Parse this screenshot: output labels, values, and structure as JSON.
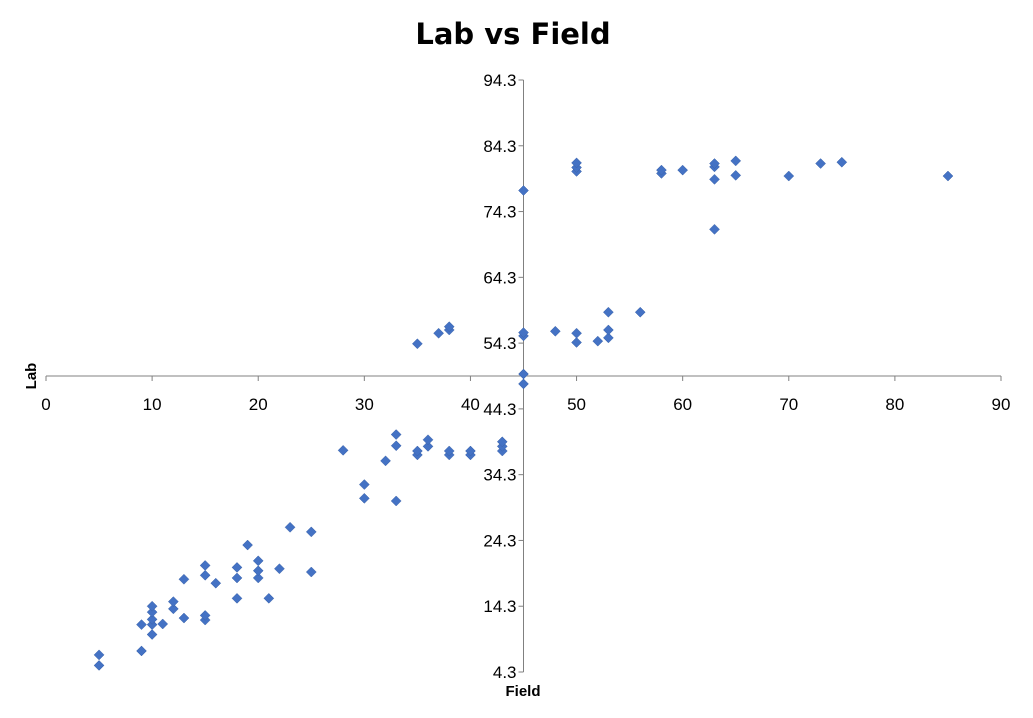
{
  "chart_data": {
    "type": "scatter",
    "title": "Lab vs Field",
    "xlabel": "Field",
    "ylabel": "Lab",
    "xlim": [
      0,
      90
    ],
    "ylim": [
      4.3,
      94.3
    ],
    "x_axis_crosses_y_at": 49.3,
    "y_axis_crosses_x_at": 45,
    "x_ticks": [
      "0",
      "10",
      "20",
      "30",
      "40",
      "50",
      "60",
      "70",
      "80",
      "90"
    ],
    "y_ticks": [
      "4.3",
      "14.3",
      "24.3",
      "34.3",
      "44.3",
      "54.3",
      "64.3",
      "74.3",
      "84.3",
      "94.3"
    ],
    "marker": "diamond",
    "grid": false,
    "legend": "none",
    "color": "#4472C4",
    "series": [
      {
        "points": [
          [
            5,
            5.3
          ],
          [
            5,
            6.9
          ],
          [
            9,
            7.5
          ],
          [
            9,
            11.5
          ],
          [
            10,
            10.0
          ],
          [
            10,
            11.5
          ],
          [
            10,
            12.3
          ],
          [
            10,
            13.4
          ],
          [
            10,
            14.3
          ],
          [
            11,
            11.6
          ],
          [
            12,
            13.9
          ],
          [
            12,
            15.0
          ],
          [
            13,
            12.5
          ],
          [
            13,
            18.4
          ],
          [
            15,
            12.2
          ],
          [
            15,
            12.9
          ],
          [
            15,
            19.0
          ],
          [
            15,
            20.5
          ],
          [
            16,
            17.8
          ],
          [
            18,
            15.5
          ],
          [
            18,
            18.6
          ],
          [
            18,
            20.2
          ],
          [
            19,
            23.6
          ],
          [
            20,
            18.6
          ],
          [
            20,
            19.7
          ],
          [
            20,
            21.2
          ],
          [
            21,
            15.5
          ],
          [
            22,
            20.0
          ],
          [
            23,
            26.3
          ],
          [
            25,
            19.5
          ],
          [
            25,
            25.6
          ],
          [
            28,
            38.0
          ],
          [
            30,
            30.7
          ],
          [
            30,
            32.8
          ],
          [
            32,
            36.4
          ],
          [
            33,
            30.3
          ],
          [
            33,
            38.7
          ],
          [
            33,
            40.4
          ],
          [
            35,
            37.3
          ],
          [
            35,
            37.9
          ],
          [
            36,
            38.6
          ],
          [
            36,
            39.6
          ],
          [
            38,
            37.3
          ],
          [
            38,
            37.9
          ],
          [
            40,
            37.3
          ],
          [
            40,
            37.9
          ],
          [
            43,
            37.9
          ],
          [
            43,
            38.6
          ],
          [
            43,
            39.3
          ],
          [
            35,
            54.2
          ],
          [
            37,
            55.8
          ],
          [
            38,
            56.3
          ],
          [
            38,
            56.8
          ],
          [
            45,
            55.4
          ],
          [
            45,
            55.9
          ],
          [
            45,
            48.1
          ],
          [
            45,
            49.6
          ],
          [
            45,
            77.5
          ],
          [
            48,
            56.1
          ],
          [
            50,
            54.4
          ],
          [
            50,
            55.8
          ],
          [
            50,
            80.4
          ],
          [
            50,
            81.0
          ],
          [
            50,
            81.7
          ],
          [
            52,
            54.6
          ],
          [
            53,
            55.1
          ],
          [
            53,
            56.3
          ],
          [
            53,
            59.0
          ],
          [
            56,
            59.0
          ],
          [
            58,
            80.1
          ],
          [
            58,
            80.6
          ],
          [
            60,
            80.6
          ],
          [
            63,
            71.6
          ],
          [
            63,
            79.2
          ],
          [
            63,
            81.1
          ],
          [
            63,
            81.6
          ],
          [
            65,
            79.8
          ],
          [
            65,
            82.0
          ],
          [
            70,
            79.7
          ],
          [
            73,
            81.6
          ],
          [
            75,
            81.8
          ],
          [
            85,
            79.7
          ]
        ]
      }
    ]
  }
}
